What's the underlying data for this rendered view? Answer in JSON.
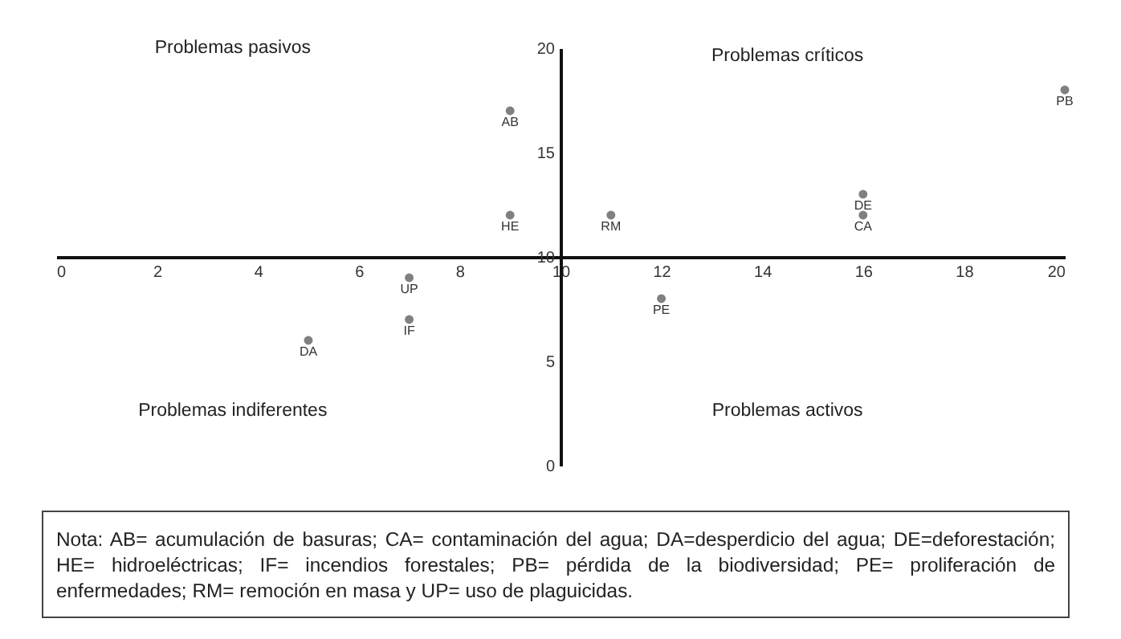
{
  "chart_data": {
    "type": "scatter",
    "x": [
      9,
      9,
      11,
      16,
      16,
      20,
      7,
      7,
      5,
      12
    ],
    "values": [
      17,
      12,
      12,
      13,
      12,
      18,
      9,
      7,
      6,
      8
    ],
    "color": "#808080",
    "marker": "circle",
    "xlim": [
      0,
      20
    ],
    "xticks": [
      0,
      2,
      4,
      6,
      8,
      10,
      12,
      14,
      16,
      18,
      20
    ],
    "ylim": [
      0,
      20
    ],
    "yticks": [
      0,
      5,
      10,
      15,
      20
    ],
    "annotations": [
      {
        "text": "AB",
        "x": 9,
        "y": 17
      },
      {
        "text": "HE",
        "x": 9,
        "y": 12
      },
      {
        "text": "RM",
        "x": 11,
        "y": 12
      },
      {
        "text": "DE",
        "x": 16,
        "y": 13
      },
      {
        "text": "CA",
        "x": 16,
        "y": 12
      },
      {
        "text": "PB",
        "x": 20,
        "y": 18
      },
      {
        "text": "UP",
        "x": 7,
        "y": 9
      },
      {
        "text": "IF",
        "x": 7,
        "y": 7
      },
      {
        "text": "DA",
        "x": 5,
        "y": 6
      },
      {
        "text": "PE",
        "x": 12,
        "y": 8
      },
      "Problemas pasivos",
      "Problemas críticos",
      "Problemas indiferentes",
      "Problemas activos",
      "Nota: AB= acumulación de basuras; CA= contaminación del agua; DA=desperdicio del agua; DE=deforestación; HE= hidroeléctricas; IF= incendios forestales; PB= pérdida de la biodiversidad; PE= proliferación de enfermedades; RM= remoción en masa y UP= uso de plaguicidas."
    ]
  }
}
